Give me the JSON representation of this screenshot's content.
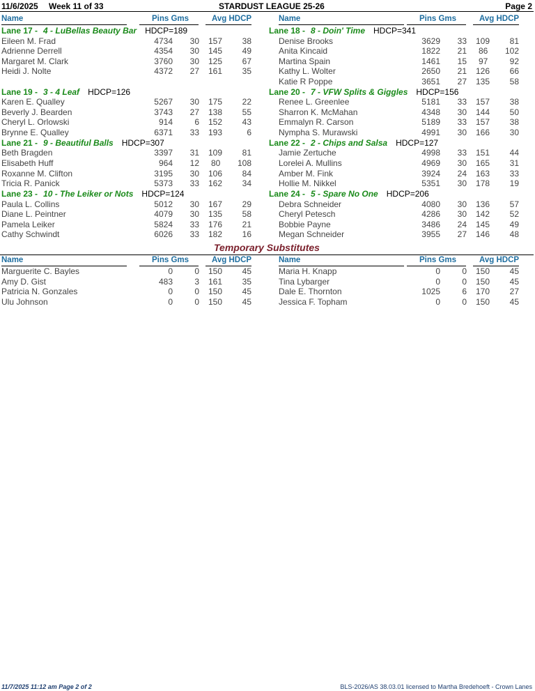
{
  "header": {
    "date": "11/6/2025",
    "week": "Week 11 of 33",
    "league": "STARDUST LEAGUE 25-26",
    "page": "Page 2"
  },
  "columns": {
    "name": "Name",
    "pins_gms": "Pins  Gms",
    "avg_hdcp": "Avg HDCP"
  },
  "lanes": [
    {
      "lane": "Lane 17 -",
      "team": "4 - LuBellas Beauty Bar",
      "hdcp": "HDCP=189",
      "players": [
        [
          "Eileen M. Frad",
          "4734",
          "30",
          "157",
          "38"
        ],
        [
          "Adrienne Derrell",
          "4354",
          "30",
          "145",
          "49"
        ],
        [
          "Margaret M. Clark",
          "3760",
          "30",
          "125",
          "67"
        ],
        [
          "Heidi J. Nolte",
          "4372",
          "27",
          "161",
          "35"
        ]
      ]
    },
    {
      "lane": "Lane 18 -",
      "team": "8 - Doin' Time",
      "hdcp": "HDCP=341",
      "players": [
        [
          "Denise Brooks",
          "3629",
          "33",
          "109",
          "81"
        ],
        [
          "Anita Kincaid",
          "1822",
          "21",
          "86",
          "102"
        ],
        [
          "Martina Spain",
          "1461",
          "15",
          "97",
          "92"
        ],
        [
          "Kathy L. Wolter",
          "2650",
          "21",
          "126",
          "66"
        ],
        [
          "Katie R Poppe",
          "3651",
          "27",
          "135",
          "58"
        ]
      ]
    },
    {
      "lane": "Lane 19 -",
      "team": "3 - 4 Leaf",
      "hdcp": "HDCP=126",
      "players": [
        [
          "Karen E. Qualley",
          "5267",
          "30",
          "175",
          "22"
        ],
        [
          "Beverly J. Bearden",
          "3743",
          "27",
          "138",
          "55"
        ],
        [
          "Cheryl L. Orlowski",
          "914",
          "6",
          "152",
          "43"
        ],
        [
          "Brynne E. Qualley",
          "6371",
          "33",
          "193",
          "6"
        ]
      ]
    },
    {
      "lane": "Lane 20 -",
      "team": "7 - VFW Splits & Giggles",
      "hdcp": "HDCP=156",
      "players": [
        [
          "Renee L. Greenlee",
          "5181",
          "33",
          "157",
          "38"
        ],
        [
          "Sharron K. McMahan",
          "4348",
          "30",
          "144",
          "50"
        ],
        [
          "Emmalyn R. Carson",
          "5189",
          "33",
          "157",
          "38"
        ],
        [
          "Nympha S. Murawski",
          "4991",
          "30",
          "166",
          "30"
        ]
      ]
    },
    {
      "lane": "Lane 21 -",
      "team": "9 - Beautiful Balls",
      "hdcp": "HDCP=307",
      "players": [
        [
          "Beth Bragden",
          "3397",
          "31",
          "109",
          "81"
        ],
        [
          "Elisabeth Huff",
          "964",
          "12",
          "80",
          "108"
        ],
        [
          "Roxanne M. Clifton",
          "3195",
          "30",
          "106",
          "84"
        ],
        [
          "Tricia R. Panick",
          "5373",
          "33",
          "162",
          "34"
        ]
      ]
    },
    {
      "lane": "Lane 22 -",
      "team": "2 - Chips and Salsa",
      "hdcp": "HDCP=127",
      "players": [
        [
          "Jamie Zertuche",
          "4998",
          "33",
          "151",
          "44"
        ],
        [
          "Lorelei A. Mullins",
          "4969",
          "30",
          "165",
          "31"
        ],
        [
          "Amber M. Fink",
          "3924",
          "24",
          "163",
          "33"
        ],
        [
          "Hollie M. Nikkel",
          "5351",
          "30",
          "178",
          "19"
        ]
      ]
    },
    {
      "lane": "Lane 23 -",
      "team": "10 - The Leiker or Nots",
      "hdcp": "HDCP=124",
      "players": [
        [
          "Paula L. Collins",
          "5012",
          "30",
          "167",
          "29"
        ],
        [
          "Diane L. Peintner",
          "4079",
          "30",
          "135",
          "58"
        ],
        [
          "Pamela Leiker",
          "5824",
          "33",
          "176",
          "21"
        ],
        [
          "Cathy Schwindt",
          "6026",
          "33",
          "182",
          "16"
        ]
      ]
    },
    {
      "lane": "Lane 24 -",
      "team": "5 - Spare No One",
      "hdcp": "HDCP=206",
      "players": [
        [
          "Debra Schneider",
          "4080",
          "30",
          "136",
          "57"
        ],
        [
          "Cheryl Petesch",
          "4286",
          "30",
          "142",
          "52"
        ],
        [
          "Bobbie Payne",
          "3486",
          "24",
          "145",
          "49"
        ],
        [
          "Megan Schneider",
          "3955",
          "27",
          "146",
          "48"
        ]
      ]
    }
  ],
  "subs": {
    "title": "Temporary Substitutes",
    "left": [
      [
        "Marguerite C. Bayles",
        "0",
        "0",
        "150",
        "45"
      ],
      [
        "Amy D. Gist",
        "483",
        "3",
        "161",
        "35"
      ],
      [
        "Patricia N. Gonzales",
        "0",
        "0",
        "150",
        "45"
      ],
      [
        "Ulu Johnson",
        "0",
        "0",
        "150",
        "45"
      ]
    ],
    "right": [
      [
        "Maria H. Knapp",
        "0",
        "0",
        "150",
        "45"
      ],
      [
        "Tina Lybarger",
        "0",
        "0",
        "150",
        "45"
      ],
      [
        "Dale E. Thornton",
        "1025",
        "6",
        "170",
        "27"
      ],
      [
        "Jessica F. Topham",
        "0",
        "0",
        "150",
        "45"
      ]
    ]
  },
  "footer": {
    "left": "11/7/2025  11:12 am  Page 2 of 2",
    "right": "BLS-2026/AS 38.03.01 licensed to Martha Bredehoeft - Crown Lanes"
  }
}
